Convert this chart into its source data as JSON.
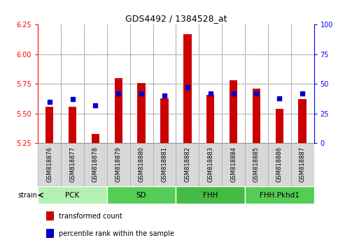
{
  "title": "GDS4492 / 1384528_at",
  "samples": [
    "GSM818876",
    "GSM818877",
    "GSM818878",
    "GSM818879",
    "GSM818880",
    "GSM818881",
    "GSM818882",
    "GSM818883",
    "GSM818884",
    "GSM818885",
    "GSM818886",
    "GSM818887"
  ],
  "transformed_count": [
    5.56,
    5.56,
    5.33,
    5.8,
    5.76,
    5.63,
    6.17,
    5.66,
    5.78,
    5.71,
    5.54,
    5.62
  ],
  "percentile_rank": [
    35,
    37,
    32,
    42,
    42,
    40,
    47,
    42,
    42,
    42,
    38,
    42
  ],
  "ylim_left": [
    5.25,
    6.25
  ],
  "ylim_right": [
    0,
    100
  ],
  "yticks_left": [
    5.25,
    5.5,
    5.75,
    6.0,
    6.25
  ],
  "yticks_right": [
    0,
    25,
    50,
    75,
    100
  ],
  "bar_color": "#cc0000",
  "dot_color": "#0000cc",
  "bar_width": 0.35,
  "groups": [
    {
      "label": "PCK",
      "start": 0,
      "end": 3,
      "color": "#b3f0b3"
    },
    {
      "label": "SD",
      "start": 3,
      "end": 6,
      "color": "#55cc55"
    },
    {
      "label": "FHH",
      "start": 6,
      "end": 9,
      "color": "#44bb44"
    },
    {
      "label": "FHH.Pkhd1",
      "start": 9,
      "end": 12,
      "color": "#55cc55"
    }
  ],
  "strain_label": "strain",
  "legend": [
    {
      "label": "transformed count",
      "color": "#cc0000"
    },
    {
      "label": "percentile rank within the sample",
      "color": "#0000cc"
    }
  ],
  "background_color": "#ffffff",
  "plot_bg_color": "#ffffff",
  "tick_bg_color": "#d8d8d8",
  "group_bg_color": "#c8c8c8"
}
